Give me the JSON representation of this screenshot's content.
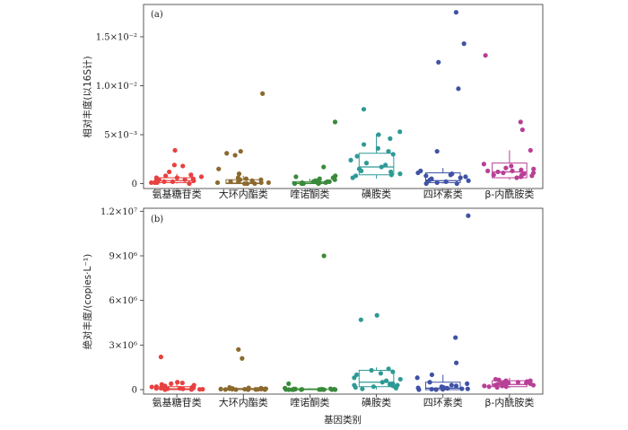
{
  "chart_data": [
    {
      "type": "box+scatter",
      "panel_label": "(a)",
      "ylabel": "相对丰度(以16S计)",
      "ylim": [
        -0.0005,
        0.0183
      ],
      "yticks": [
        {
          "value": 0,
          "label": "0"
        },
        {
          "value": 0.005,
          "label": "5×10⁻³"
        },
        {
          "value": 0.01,
          "label": "1.0×10⁻²"
        },
        {
          "value": 0.015,
          "label": "1.5×10⁻²"
        }
      ],
      "categories": [
        "氨基糖苷类",
        "大环内酯类",
        "喹诺酮类",
        "磺胺类",
        "四环素类",
        "β-内酰胺类"
      ],
      "series": [
        {
          "color": "#e8403f",
          "box": {
            "q1": 0.0001,
            "median": 0.0003,
            "q3": 0.0006
          },
          "whisker_low": 0.0,
          "whisker_high": 0.001,
          "points": [
            0.0,
            0.0001,
            0.0002,
            0.0003,
            0.0004,
            0.0005,
            0.0006,
            0.0007,
            0.0008,
            0.0009,
            0.0001,
            0.0002,
            0.0004,
            0.0006,
            0.0003,
            0.0012,
            0.0018,
            0.0019,
            0.0034,
            0.0001
          ]
        },
        {
          "color": "#8b6a2e",
          "box": {
            "q1": 0.0,
            "median": 5e-05,
            "q3": 0.0004
          },
          "whisker_low": 0.0,
          "whisker_high": 0.0008,
          "points": [
            0.0,
            0.0,
            0.0001,
            0.0001,
            0.0002,
            0.0003,
            0.0004,
            0.0005,
            0.0006,
            0.0,
            0.0001,
            0.0002,
            0.0004,
            0.001,
            0.0015,
            0.0029,
            0.0031,
            0.0033,
            0.0092,
            0.0002
          ]
        },
        {
          "color": "#3a8a3a",
          "box": {
            "q1": 0.0,
            "median": 5e-05,
            "q3": 0.0002
          },
          "whisker_low": 0.0,
          "whisker_high": 0.0005,
          "points": [
            0.0,
            0.0,
            0.0,
            0.0001,
            0.0001,
            0.0002,
            0.0002,
            0.0003,
            0.0,
            0.0001,
            0.0002,
            0.0003,
            0.0004,
            0.0005,
            0.0006,
            0.0007,
            0.0008,
            0.0017,
            0.0063,
            0.0001
          ]
        },
        {
          "color": "#2e9a96",
          "box": {
            "q1": 0.0009,
            "median": 0.0017,
            "q3": 0.0031
          },
          "whisker_low": 0.0005,
          "whisker_high": 0.0051,
          "points": [
            0.0006,
            0.0008,
            0.0009,
            0.001,
            0.0012,
            0.0013,
            0.0015,
            0.0017,
            0.0019,
            0.0021,
            0.0024,
            0.0028,
            0.003,
            0.0033,
            0.0036,
            0.004,
            0.0046,
            0.005,
            0.0053,
            0.0076
          ]
        },
        {
          "color": "#3f52a5",
          "box": {
            "q1": 0.0001,
            "median": 0.0003,
            "q3": 0.0011
          },
          "whisker_low": 0.0,
          "whisker_high": 0.0016,
          "points": [
            0.0,
            0.0,
            0.0001,
            0.0002,
            0.0003,
            0.0004,
            0.0005,
            0.0006,
            0.0007,
            0.0008,
            0.0009,
            0.001,
            0.0011,
            0.0013,
            0.0033,
            0.0097,
            0.0124,
            0.0143,
            0.0175,
            0.0002
          ]
        },
        {
          "color": "#b83f96",
          "box": {
            "q1": 0.0006,
            "median": 0.0012,
            "q3": 0.0021
          },
          "whisker_low": 0.0004,
          "whisker_high": 0.0034,
          "points": [
            0.0006,
            0.0007,
            0.0008,
            0.0009,
            0.001,
            0.0011,
            0.0012,
            0.0013,
            0.0014,
            0.0015,
            0.0016,
            0.0018,
            0.002,
            0.0034,
            0.0055,
            0.0063,
            0.0131,
            0.0011,
            0.0013,
            0.0009
          ]
        }
      ]
    },
    {
      "type": "box+scatter",
      "panel_label": "(b)",
      "ylabel": "绝对丰度/(copies·L⁻¹)",
      "xlabel": "基因类别",
      "ylim": [
        -300000,
        12200000
      ],
      "yticks": [
        {
          "value": 0,
          "label": "0"
        },
        {
          "value": 3000000,
          "label": "3×10⁶"
        },
        {
          "value": 6000000,
          "label": "6×10⁶"
        },
        {
          "value": 9000000,
          "label": "9×10⁶"
        },
        {
          "value": 12000000,
          "label": "1.2×10⁷"
        }
      ],
      "categories": [
        "氨基糖苷类",
        "大环内酯类",
        "喹诺酮类",
        "磺胺类",
        "四环素类",
        "β-内酰胺类"
      ],
      "series": [
        {
          "color": "#e8403f",
          "box": {
            "q1": 0,
            "median": 60000,
            "q3": 200000
          },
          "whisker_low": 0,
          "whisker_high": 400000,
          "points": [
            0,
            20000,
            50000,
            80000,
            100000,
            120000,
            150000,
            180000,
            200000,
            250000,
            300000,
            350000,
            400000,
            450000,
            500000,
            60000,
            30000,
            90000,
            2200000,
            10000
          ]
        },
        {
          "color": "#8b6a2e",
          "box": {
            "q1": 0,
            "median": 20000,
            "q3": 80000
          },
          "whisker_low": 0,
          "whisker_high": 150000,
          "points": [
            0,
            0,
            10000,
            20000,
            30000,
            40000,
            50000,
            60000,
            80000,
            100000,
            0,
            20000,
            40000,
            60000,
            120000,
            150000,
            2100000,
            2700000,
            10000,
            30000
          ]
        },
        {
          "color": "#3a8a3a",
          "box": {
            "q1": 0,
            "median": 10000,
            "q3": 50000
          },
          "whisker_low": 0,
          "whisker_high": 100000,
          "points": [
            0,
            0,
            0,
            0,
            10000,
            10000,
            20000,
            30000,
            40000,
            50000,
            0,
            0,
            10000,
            20000,
            30000,
            60000,
            100000,
            400000,
            9000000,
            0
          ]
        },
        {
          "color": "#2e9a96",
          "box": {
            "q1": 200000,
            "median": 500000,
            "q3": 1300000
          },
          "whisker_low": 0,
          "whisker_high": 1500000,
          "points": [
            50000,
            100000,
            150000,
            200000,
            250000,
            300000,
            350000,
            400000,
            500000,
            600000,
            700000,
            800000,
            1000000,
            1100000,
            1200000,
            1300000,
            1400000,
            4700000,
            5000000,
            300000
          ]
        },
        {
          "color": "#3f52a5",
          "box": {
            "q1": 0,
            "median": 100000,
            "q3": 500000
          },
          "whisker_low": 0,
          "whisker_high": 1000000,
          "points": [
            0,
            0,
            20000,
            50000,
            80000,
            100000,
            150000,
            200000,
            250000,
            300000,
            400000,
            500000,
            800000,
            1000000,
            1800000,
            3500000,
            11700000,
            60000,
            30000,
            120000
          ]
        },
        {
          "color": "#b83f96",
          "box": {
            "q1": 200000,
            "median": 350000,
            "q3": 600000
          },
          "whisker_low": 100000,
          "whisker_high": 800000,
          "points": [
            150000,
            200000,
            250000,
            300000,
            350000,
            400000,
            450000,
            500000,
            550000,
            600000,
            650000,
            700000,
            300000,
            400000,
            500000,
            200000,
            350000,
            600000,
            450000,
            250000
          ]
        }
      ]
    }
  ]
}
